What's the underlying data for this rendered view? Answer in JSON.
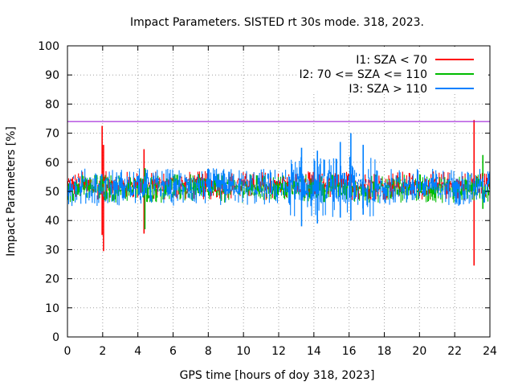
{
  "chart_data": {
    "type": "line",
    "title": "Impact Parameters. SISTED rt 30s mode. 318, 2023.",
    "xlabel": "GPS time [hours of doy 318, 2023]",
    "ylabel": "Impact Parameters [%]",
    "xlim": [
      0,
      24
    ],
    "ylim": [
      0,
      100
    ],
    "x_ticks": [
      0,
      2,
      4,
      6,
      8,
      10,
      12,
      14,
      16,
      18,
      20,
      22,
      24
    ],
    "y_ticks": [
      0,
      10,
      20,
      30,
      40,
      50,
      60,
      70,
      80,
      90,
      100
    ],
    "grid": true,
    "legend_position": "top-right",
    "threshold": {
      "value": 74,
      "color": "#9400d3"
    },
    "series": [
      {
        "name": "I1: SZA < 70",
        "color": "#ff0000",
        "band": [
          47,
          57
        ],
        "spikes": [
          {
            "x": 1.97,
            "hi": 72.5,
            "lo": 35
          },
          {
            "x": 2.05,
            "hi": 66,
            "lo": 29.5
          },
          {
            "x": 4.35,
            "hi": 64.5,
            "lo": 35.5
          },
          {
            "x": 23.1,
            "hi": 74.5,
            "lo": 24.5
          }
        ]
      },
      {
        "name": "I2: 70 <= SZA <= 110",
        "color": "#00bb00",
        "band": [
          46,
          56
        ],
        "spikes": [
          {
            "x": 4.4,
            "hi": 58,
            "lo": 37
          },
          {
            "x": 23.6,
            "hi": 62.5,
            "lo": 44
          }
        ]
      },
      {
        "name": "I3: SZA > 110",
        "color": "#0080ff",
        "band": [
          45,
          58
        ],
        "spikes": [
          {
            "x": 13.3,
            "hi": 65,
            "lo": 38
          },
          {
            "x": 14.2,
            "hi": 64,
            "lo": 39
          },
          {
            "x": 15.5,
            "hi": 67,
            "lo": 41
          },
          {
            "x": 16.1,
            "hi": 70,
            "lo": 40
          },
          {
            "x": 16.8,
            "hi": 66,
            "lo": 42
          }
        ]
      }
    ]
  }
}
